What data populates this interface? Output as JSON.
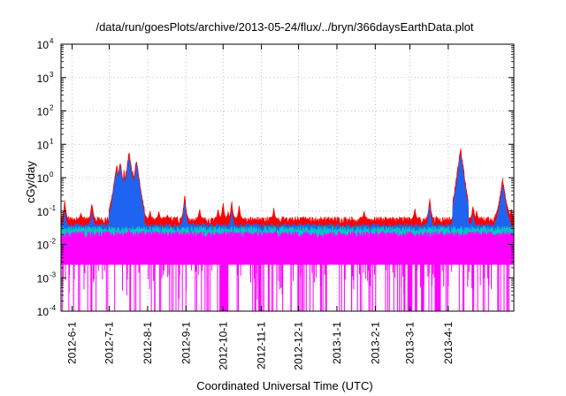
{
  "chart_data": {
    "type": "area",
    "title": "/data/run/goesPlots/archive/2013-05-24/flux/../bryn/366daysEarthData.plot",
    "xlabel": "Coordinated Universal Time (UTC)",
    "ylabel": "cGy/day",
    "yscale": "log",
    "ylim": [
      0.0001,
      10000
    ],
    "y_ticks": [
      {
        "value": 0.0001,
        "base": "10",
        "exp": "-4"
      },
      {
        "value": 0.001,
        "base": "10",
        "exp": "-3"
      },
      {
        "value": 0.01,
        "base": "10",
        "exp": "-2"
      },
      {
        "value": 0.1,
        "base": "10",
        "exp": "-1"
      },
      {
        "value": 1,
        "base": "10",
        "exp": "0"
      },
      {
        "value": 10,
        "base": "10",
        "exp": "1"
      },
      {
        "value": 100,
        "base": "10",
        "exp": "2"
      },
      {
        "value": 1000,
        "base": "10",
        "exp": "3"
      },
      {
        "value": 10000,
        "base": "10",
        "exp": "4"
      }
    ],
    "xlim": [
      "2012-05-23",
      "2013-05-24"
    ],
    "x_ticks": [
      {
        "date": "2012-06-01",
        "label": "2012-6-1"
      },
      {
        "date": "2012-07-01",
        "label": "2012-7-1"
      },
      {
        "date": "2012-08-01",
        "label": "2012-8-1"
      },
      {
        "date": "2012-09-01",
        "label": "2012-9-1"
      },
      {
        "date": "2012-10-01",
        "label": "2012-10-1"
      },
      {
        "date": "2012-11-01",
        "label": "2012-11-1"
      },
      {
        "date": "2012-12-01",
        "label": "2012-12-1"
      },
      {
        "date": "2013-01-01",
        "label": "2013-1-1"
      },
      {
        "date": "2013-02-01",
        "label": "2013-2-1"
      },
      {
        "date": "2013-03-01",
        "label": "2013-3-1"
      },
      {
        "date": "2013-04-01",
        "label": "2013-4-1"
      }
    ],
    "grid": true,
    "series": [
      {
        "color": "#ff0000",
        "baseline": 0.055,
        "events": [
          [
            "2012-05-26",
            0.2
          ],
          [
            "2012-06-08",
            0.09
          ],
          [
            "2012-06-17",
            0.18
          ],
          [
            "2012-07-07",
            2.5
          ],
          [
            "2012-07-10",
            3.0
          ],
          [
            "2012-07-13",
            1.6
          ],
          [
            "2012-07-17",
            6.0
          ],
          [
            "2012-07-20",
            1.5
          ],
          [
            "2012-07-23",
            3.5
          ],
          [
            "2012-07-25",
            0.6
          ],
          [
            "2012-08-03",
            0.1
          ],
          [
            "2012-08-10",
            0.1
          ],
          [
            "2012-08-17",
            0.08
          ],
          [
            "2012-08-31",
            0.3
          ],
          [
            "2012-09-12",
            0.12
          ],
          [
            "2012-09-27",
            0.12
          ],
          [
            "2012-10-01",
            0.18
          ],
          [
            "2012-10-05",
            0.1
          ],
          [
            "2012-10-08",
            0.2
          ],
          [
            "2012-10-14",
            0.15
          ],
          [
            "2012-11-11",
            0.12
          ],
          [
            "2012-12-05",
            0.07
          ],
          [
            "2013-01-23",
            0.1
          ],
          [
            "2013-03-05",
            0.12
          ],
          [
            "2013-03-17",
            0.25
          ],
          [
            "2013-04-11",
            7.5
          ],
          [
            "2013-04-15",
            0.1
          ],
          [
            "2013-04-21",
            0.15
          ],
          [
            "2013-04-24",
            0.1
          ],
          [
            "2013-05-15",
            0.9
          ],
          [
            "2013-05-22",
            0.12
          ]
        ]
      },
      {
        "color": "#00cc00",
        "baseline": 0.03,
        "events": [
          [
            "2012-07-07",
            1.5
          ],
          [
            "2012-07-10",
            2.0
          ],
          [
            "2012-07-13",
            1.0
          ],
          [
            "2012-07-17",
            3.5
          ],
          [
            "2012-07-20",
            0.9
          ],
          [
            "2012-07-23",
            2.0
          ],
          [
            "2012-08-31",
            0.15
          ],
          [
            "2013-04-11",
            4.0
          ],
          [
            "2013-05-15",
            0.5
          ]
        ]
      },
      {
        "color": "#1e64f0",
        "baseline": 0.035,
        "events": [
          [
            "2012-05-26",
            0.1
          ],
          [
            "2012-06-17",
            0.1
          ],
          [
            "2012-07-07",
            1.8
          ],
          [
            "2012-07-10",
            2.2
          ],
          [
            "2012-07-13",
            1.1
          ],
          [
            "2012-07-17",
            4.0
          ],
          [
            "2012-07-20",
            1.0
          ],
          [
            "2012-07-23",
            2.5
          ],
          [
            "2012-07-25",
            0.4
          ],
          [
            "2012-08-31",
            0.2
          ],
          [
            "2012-10-08",
            0.1
          ],
          [
            "2013-03-17",
            0.15
          ],
          [
            "2013-04-11",
            5.0
          ],
          [
            "2013-04-21",
            0.08
          ],
          [
            "2013-05-15",
            0.6
          ]
        ]
      },
      {
        "color": "#00c8c8",
        "baseline": 0.028,
        "events": []
      },
      {
        "color": "#ff00ff",
        "baseline": 0.02,
        "events": [
          [
            "2012-07-17",
            0.03
          ]
        ],
        "gaps": [
          [
            "2012-09-28",
            "2012-10-04"
          ],
          [
            "2013-02-27",
            "2013-03-03"
          ],
          [
            "2013-03-21",
            "2013-03-26"
          ]
        ]
      }
    ]
  }
}
